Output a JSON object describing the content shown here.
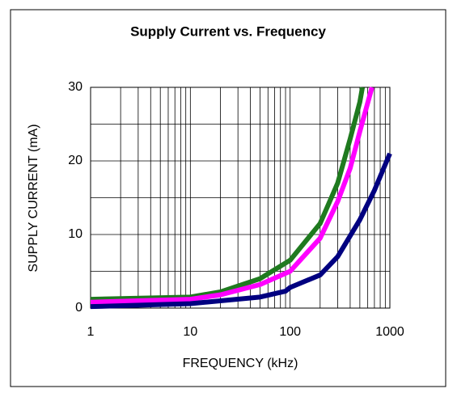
{
  "chart_data": {
    "type": "line",
    "title": "Supply Current vs. Frequency",
    "xlabel": "FREQUENCY (kHz)",
    "ylabel": "SUPPLY CURRENT (mA)",
    "xscale": "log",
    "xlim": [
      1,
      1000
    ],
    "xticks": [
      1,
      10,
      100,
      1000
    ],
    "ylim": [
      0,
      30
    ],
    "yticks": [
      0,
      10,
      20,
      30
    ],
    "yminor_ticks": [
      5,
      15,
      25
    ],
    "grid": true,
    "series": [
      {
        "color": "#1f7a1f",
        "x": [
          1,
          10,
          20,
          50,
          100,
          200,
          300,
          400,
          500,
          531
        ],
        "values": [
          1.2,
          1.5,
          2.2,
          4,
          6.5,
          11.5,
          17,
          23,
          28,
          30
        ]
      },
      {
        "color": "#ff00ff",
        "x": [
          1,
          10,
          20,
          50,
          100,
          200,
          300,
          400,
          500,
          662
        ],
        "values": [
          0.8,
          1.2,
          1.8,
          3.2,
          5,
          9.5,
          14.5,
          19,
          24,
          30
        ]
      },
      {
        "color": "#000080",
        "x": [
          1,
          10,
          50,
          90,
          100,
          200,
          300,
          500,
          700,
          1000
        ],
        "values": [
          0.2,
          0.6,
          1.5,
          2.3,
          2.8,
          4.5,
          7,
          12,
          16,
          21
        ]
      }
    ]
  }
}
